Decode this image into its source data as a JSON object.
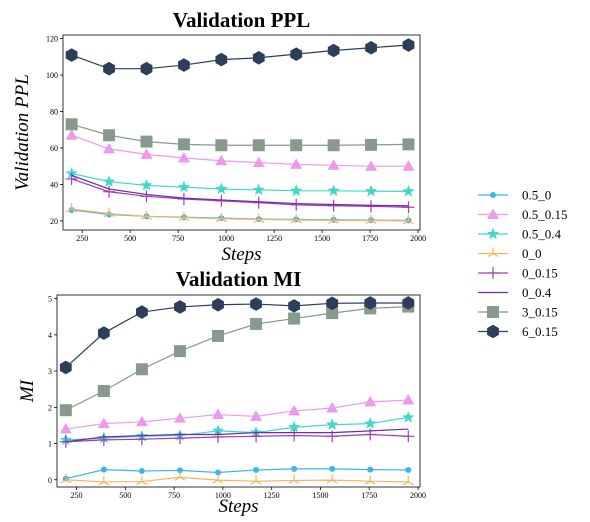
{
  "chart_data": [
    {
      "type": "line",
      "title": "Validation PPL",
      "xlabel": "Steps",
      "ylabel": "Validation PPL",
      "xlim": [
        150,
        2010
      ],
      "ylim": [
        15,
        122
      ],
      "xticks": [
        250,
        500,
        750,
        1000,
        1250,
        1500,
        1750,
        2000
      ],
      "yticks": [
        20,
        40,
        60,
        80,
        100,
        120
      ],
      "x": [
        195,
        390,
        585,
        780,
        975,
        1170,
        1365,
        1560,
        1755,
        1950
      ],
      "grid": false,
      "series": [
        {
          "name": "0.5_0",
          "values": [
            26,
            23.5,
            22.5,
            22,
            21.5,
            21,
            20.8,
            20.6,
            20.4,
            20.3
          ]
        },
        {
          "name": "0.5_0.15",
          "values": [
            67,
            59.5,
            56.5,
            54.5,
            53,
            52,
            51,
            50.5,
            50,
            50
          ]
        },
        {
          "name": "0.5_0.4",
          "values": [
            46,
            41.5,
            39.5,
            38.5,
            37.5,
            37,
            36.5,
            36.5,
            36.3,
            36.2
          ]
        },
        {
          "name": "0_0",
          "values": [
            26.5,
            24,
            22.5,
            21.8,
            21.2,
            20.8,
            20.5,
            20.3,
            20.2,
            20
          ]
        },
        {
          "name": "0_0.15",
          "values": [
            43,
            36,
            33.5,
            32,
            31,
            30,
            28.8,
            28.3,
            28,
            27.5
          ]
        },
        {
          "name": "0_0.4",
          "values": [
            45,
            37.5,
            34.5,
            32.5,
            31.5,
            30.5,
            29.5,
            29,
            28.5,
            28.3
          ]
        },
        {
          "name": "3_0.15",
          "values": [
            73,
            67,
            63.5,
            62,
            61.5,
            61.5,
            61.5,
            61.5,
            61.7,
            62
          ]
        },
        {
          "name": "6_0.15",
          "values": [
            111,
            103.5,
            103.5,
            105.5,
            108.5,
            109.5,
            111.5,
            113.5,
            115,
            116.5
          ]
        }
      ]
    },
    {
      "type": "line",
      "title": "Validation MI",
      "xlabel": "Steps",
      "ylabel": "MI",
      "xlim": [
        150,
        2010
      ],
      "ylim": [
        -0.2,
        5.1
      ],
      "xticks": [
        250,
        500,
        750,
        1000,
        1250,
        1500,
        1750,
        2000
      ],
      "yticks": [
        0,
        1,
        2,
        3,
        4,
        5
      ],
      "x": [
        195,
        390,
        585,
        780,
        975,
        1170,
        1365,
        1560,
        1755,
        1950
      ],
      "grid": false,
      "series": [
        {
          "name": "0.5_0",
          "values": [
            0.03,
            0.28,
            0.24,
            0.26,
            0.2,
            0.27,
            0.3,
            0.3,
            0.28,
            0.27
          ]
        },
        {
          "name": "0.5_0.15",
          "values": [
            1.4,
            1.55,
            1.6,
            1.7,
            1.8,
            1.75,
            1.9,
            1.98,
            2.15,
            2.2
          ]
        },
        {
          "name": "0.5_0.4",
          "values": [
            1.1,
            1.15,
            1.2,
            1.22,
            1.35,
            1.3,
            1.45,
            1.52,
            1.55,
            1.72
          ]
        },
        {
          "name": "0_0",
          "values": [
            0.0,
            -0.06,
            -0.05,
            0.07,
            -0.01,
            -0.04,
            -0.02,
            -0.01,
            -0.04,
            -0.06
          ]
        },
        {
          "name": "0_0.15",
          "values": [
            1.05,
            1.1,
            1.12,
            1.15,
            1.18,
            1.2,
            1.22,
            1.2,
            1.25,
            1.2
          ]
        },
        {
          "name": "0_0.4",
          "values": [
            1.05,
            1.18,
            1.22,
            1.25,
            1.25,
            1.3,
            1.3,
            1.3,
            1.35,
            1.4
          ]
        },
        {
          "name": "3_0.15",
          "values": [
            1.92,
            2.45,
            3.05,
            3.55,
            3.97,
            4.3,
            4.45,
            4.6,
            4.73,
            4.78
          ]
        },
        {
          "name": "6_0.15",
          "values": [
            3.1,
            4.05,
            4.63,
            4.77,
            4.83,
            4.85,
            4.8,
            4.87,
            4.88,
            4.88
          ]
        }
      ]
    }
  ],
  "legend": {
    "placement": "right",
    "entries": [
      {
        "name": "0.5_0",
        "color": "#3cb4ef",
        "marker": "circle"
      },
      {
        "name": "0.5_0.15",
        "color": "#ee99ee",
        "marker": "triangle"
      },
      {
        "name": "0.5_0.4",
        "color": "#40d8c8",
        "marker": "star"
      },
      {
        "name": "0_0",
        "color": "#f5b560",
        "marker": "tri-star"
      },
      {
        "name": "0_0.15",
        "color": "#a040b0",
        "marker": "plus"
      },
      {
        "name": "0_0.4",
        "color": "#6a2ea8",
        "marker": "none"
      },
      {
        "name": "3_0.15",
        "color": "#889a8c",
        "marker": "square"
      },
      {
        "name": "6_0.15",
        "color": "#2c3e5a",
        "marker": "hexagon"
      }
    ]
  }
}
